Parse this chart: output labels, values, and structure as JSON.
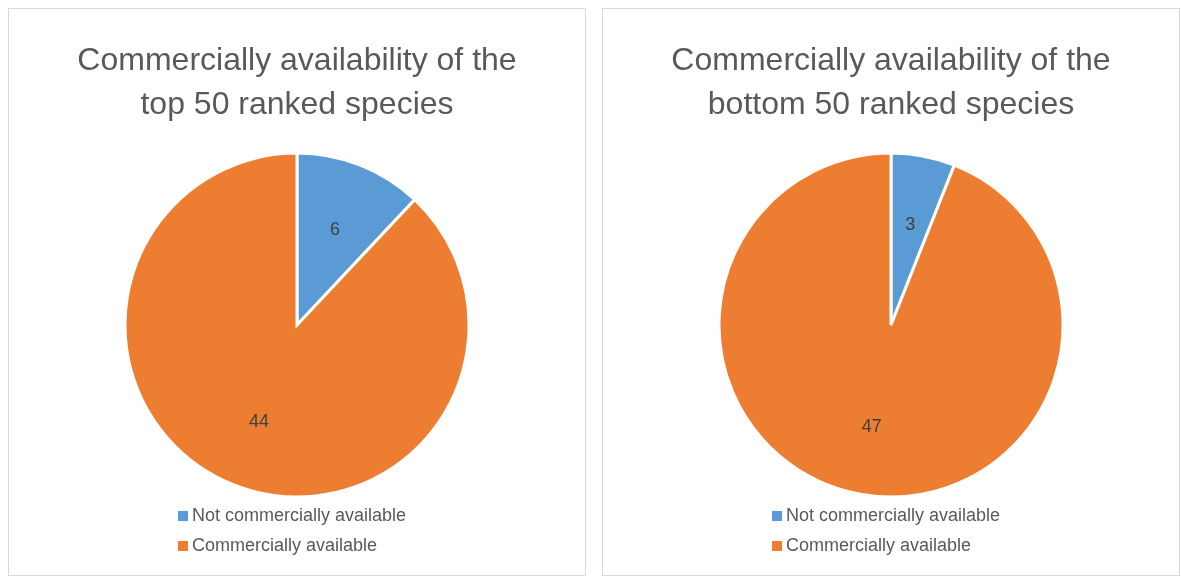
{
  "chart_data": [
    {
      "type": "pie",
      "title": "Commercially availability of the top 50 ranked species",
      "categories": [
        "Not commercially available",
        "Commercially available"
      ],
      "values": [
        6,
        44
      ],
      "colors": [
        "#5b9bd5",
        "#ed7d31"
      ],
      "data_labels": true,
      "legend": "bottom"
    },
    {
      "type": "pie",
      "title": "Commercially availability of the bottom 50 ranked species",
      "categories": [
        "Not commercially available",
        "Commercially available"
      ],
      "values": [
        3,
        47
      ],
      "colors": [
        "#5b9bd5",
        "#ed7d31"
      ],
      "data_labels": true,
      "legend": "bottom"
    }
  ]
}
